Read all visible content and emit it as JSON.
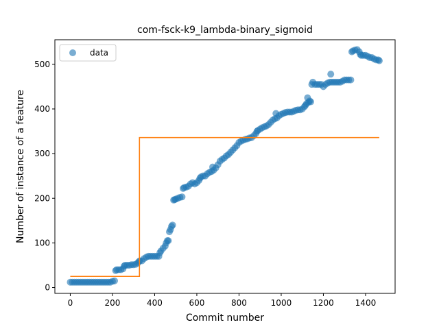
{
  "chart_data": {
    "type": "scatter",
    "title": "com-fsck-k9_lambda-binary_sigmoid",
    "xlabel": "Commit number",
    "ylabel": "Number of instance of a feature",
    "xlim": [
      -73,
      1540
    ],
    "ylim": [
      -13,
      555
    ],
    "xticks": [
      0,
      200,
      400,
      600,
      800,
      1000,
      1200,
      1400
    ],
    "yticks": [
      0,
      100,
      200,
      300,
      400,
      500
    ],
    "legend": {
      "placement": "top-left",
      "entries": [
        "data"
      ]
    },
    "colors": {
      "data": "#1f77b4",
      "fit": "#ff7f0e"
    },
    "series": [
      {
        "name": "data",
        "kind": "scatter",
        "points": [
          [
            0,
            12
          ],
          [
            10,
            12
          ],
          [
            20,
            12
          ],
          [
            30,
            12
          ],
          [
            40,
            12
          ],
          [
            50,
            12
          ],
          [
            60,
            12
          ],
          [
            70,
            12
          ],
          [
            80,
            12
          ],
          [
            90,
            12
          ],
          [
            100,
            12
          ],
          [
            110,
            12
          ],
          [
            120,
            12
          ],
          [
            130,
            12
          ],
          [
            140,
            12
          ],
          [
            150,
            12
          ],
          [
            160,
            12
          ],
          [
            170,
            12
          ],
          [
            180,
            12
          ],
          [
            190,
            12
          ],
          [
            200,
            14
          ],
          [
            210,
            15
          ],
          [
            215,
            38
          ],
          [
            220,
            40
          ],
          [
            230,
            40
          ],
          [
            240,
            40
          ],
          [
            250,
            42
          ],
          [
            255,
            48
          ],
          [
            260,
            50
          ],
          [
            270,
            50
          ],
          [
            280,
            50
          ],
          [
            290,
            51
          ],
          [
            300,
            51
          ],
          [
            310,
            52
          ],
          [
            320,
            55
          ],
          [
            325,
            58
          ],
          [
            330,
            60
          ],
          [
            340,
            60
          ],
          [
            350,
            65
          ],
          [
            360,
            68
          ],
          [
            370,
            70
          ],
          [
            380,
            70
          ],
          [
            390,
            70
          ],
          [
            400,
            70
          ],
          [
            410,
            70
          ],
          [
            420,
            70
          ],
          [
            425,
            78
          ],
          [
            430,
            82
          ],
          [
            440,
            88
          ],
          [
            450,
            93
          ],
          [
            455,
            100
          ],
          [
            460,
            105
          ],
          [
            465,
            105
          ],
          [
            470,
            125
          ],
          [
            475,
            130
          ],
          [
            480,
            137
          ],
          [
            485,
            140
          ],
          [
            490,
            196
          ],
          [
            495,
            197
          ],
          [
            500,
            198
          ],
          [
            510,
            200
          ],
          [
            520,
            202
          ],
          [
            530,
            203
          ],
          [
            535,
            222
          ],
          [
            540,
            224
          ],
          [
            550,
            225
          ],
          [
            560,
            227
          ],
          [
            570,
            232
          ],
          [
            580,
            235
          ],
          [
            590,
            232
          ],
          [
            600,
            235
          ],
          [
            610,
            240
          ],
          [
            615,
            245
          ],
          [
            620,
            248
          ],
          [
            630,
            250
          ],
          [
            640,
            250
          ],
          [
            650,
            255
          ],
          [
            660,
            258
          ],
          [
            670,
            260
          ],
          [
            675,
            270
          ],
          [
            680,
            263
          ],
          [
            690,
            268
          ],
          [
            700,
            275
          ],
          [
            710,
            283
          ],
          [
            720,
            287
          ],
          [
            730,
            290
          ],
          [
            740,
            295
          ],
          [
            750,
            298
          ],
          [
            760,
            303
          ],
          [
            770,
            308
          ],
          [
            780,
            313
          ],
          [
            790,
            318
          ],
          [
            800,
            325
          ],
          [
            810,
            328
          ],
          [
            820,
            330
          ],
          [
            830,
            332
          ],
          [
            840,
            333
          ],
          [
            850,
            335
          ],
          [
            860,
            336
          ],
          [
            870,
            340
          ],
          [
            880,
            345
          ],
          [
            885,
            350
          ],
          [
            890,
            352
          ],
          [
            900,
            355
          ],
          [
            910,
            358
          ],
          [
            920,
            360
          ],
          [
            930,
            362
          ],
          [
            940,
            365
          ],
          [
            950,
            370
          ],
          [
            960,
            375
          ],
          [
            970,
            378
          ],
          [
            975,
            390
          ],
          [
            980,
            380
          ],
          [
            990,
            385
          ],
          [
            1000,
            388
          ],
          [
            1010,
            390
          ],
          [
            1020,
            392
          ],
          [
            1030,
            393
          ],
          [
            1040,
            393
          ],
          [
            1050,
            393
          ],
          [
            1060,
            395
          ],
          [
            1070,
            397
          ],
          [
            1080,
            398
          ],
          [
            1090,
            398
          ],
          [
            1100,
            400
          ],
          [
            1110,
            405
          ],
          [
            1115,
            408
          ],
          [
            1120,
            412
          ],
          [
            1125,
            425
          ],
          [
            1130,
            415
          ],
          [
            1135,
            418
          ],
          [
            1140,
            416
          ],
          [
            1145,
            455
          ],
          [
            1150,
            460
          ],
          [
            1160,
            455
          ],
          [
            1170,
            455
          ],
          [
            1180,
            455
          ],
          [
            1190,
            455
          ],
          [
            1200,
            450
          ],
          [
            1210,
            455
          ],
          [
            1220,
            458
          ],
          [
            1230,
            460
          ],
          [
            1235,
            478
          ],
          [
            1240,
            460
          ],
          [
            1250,
            460
          ],
          [
            1260,
            460
          ],
          [
            1270,
            460
          ],
          [
            1280,
            460
          ],
          [
            1290,
            462
          ],
          [
            1300,
            465
          ],
          [
            1310,
            465
          ],
          [
            1320,
            465
          ],
          [
            1330,
            465
          ],
          [
            1335,
            528
          ],
          [
            1340,
            530
          ],
          [
            1350,
            532
          ],
          [
            1360,
            533
          ],
          [
            1370,
            528
          ],
          [
            1375,
            522
          ],
          [
            1380,
            520
          ],
          [
            1390,
            520
          ],
          [
            1400,
            520
          ],
          [
            1410,
            518
          ],
          [
            1420,
            515
          ],
          [
            1430,
            515
          ],
          [
            1440,
            512
          ],
          [
            1450,
            510
          ],
          [
            1460,
            510
          ],
          [
            1465,
            508
          ]
        ]
      },
      {
        "name": "",
        "kind": "line",
        "points": [
          [
            0,
            25
          ],
          [
            328,
            25
          ],
          [
            328,
            336
          ],
          [
            1465,
            336
          ]
        ]
      }
    ]
  }
}
